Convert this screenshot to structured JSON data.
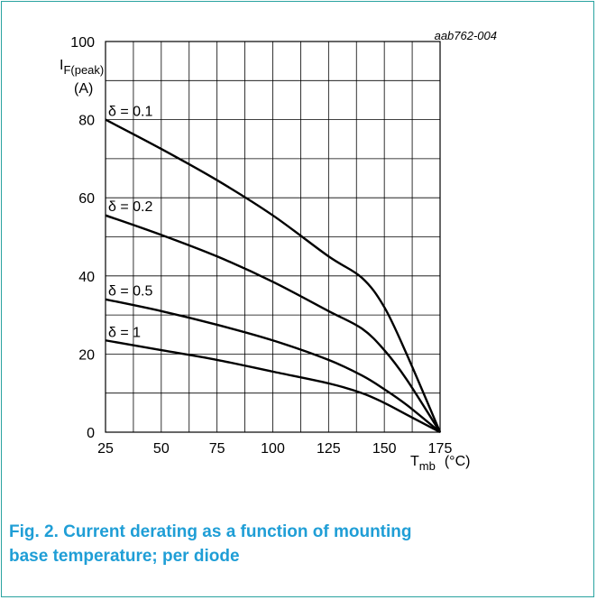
{
  "chart_data": {
    "type": "line",
    "ref_code": "aab762-004",
    "ylabel_main": "I",
    "ylabel_sub": "F(peak)",
    "ylabel_unit": "(A)",
    "xlabel_main": "T",
    "xlabel_sub": "mb",
    "xlabel_unit": "(°C)",
    "xlim": [
      25,
      175
    ],
    "ylim": [
      0,
      100
    ],
    "xticks": [
      25,
      50,
      75,
      100,
      125,
      150,
      175
    ],
    "yticks": [
      0,
      20,
      40,
      60,
      80,
      100
    ],
    "grid": true,
    "series": [
      {
        "name": "δ = 0.1",
        "label_at": [
          25,
          81
        ],
        "points": [
          [
            25,
            80
          ],
          [
            50,
            72.5
          ],
          [
            75,
            64.5
          ],
          [
            100,
            55.5
          ],
          [
            125,
            45
          ],
          [
            140,
            39.5
          ],
          [
            150,
            32
          ],
          [
            160,
            20
          ],
          [
            175,
            0
          ]
        ]
      },
      {
        "name": "δ = 0.2",
        "label_at": [
          25,
          56.6
        ],
        "points": [
          [
            25,
            55.5
          ],
          [
            50,
            50.5
          ],
          [
            75,
            45
          ],
          [
            100,
            38.5
          ],
          [
            125,
            31
          ],
          [
            140,
            26.5
          ],
          [
            150,
            21
          ],
          [
            160,
            13.5
          ],
          [
            175,
            0
          ]
        ]
      },
      {
        "name": "δ = 0.5",
        "label_at": [
          25,
          35
        ],
        "points": [
          [
            25,
            34
          ],
          [
            50,
            31
          ],
          [
            75,
            27.5
          ],
          [
            100,
            23.5
          ],
          [
            125,
            18.5
          ],
          [
            140,
            14.5
          ],
          [
            150,
            11
          ],
          [
            160,
            7
          ],
          [
            175,
            0
          ]
        ]
      },
      {
        "name": "δ = 1",
        "label_at": [
          25,
          24.4
        ],
        "points": [
          [
            25,
            23.5
          ],
          [
            50,
            21
          ],
          [
            75,
            18.5
          ],
          [
            100,
            15.5
          ],
          [
            125,
            12.5
          ],
          [
            140,
            10
          ],
          [
            150,
            7.5
          ],
          [
            160,
            4.5
          ],
          [
            175,
            0
          ]
        ]
      }
    ]
  },
  "caption": {
    "line1": "Fig. 2. Current derating as a function of mounting",
    "line2": "base temperature; per diode"
  }
}
